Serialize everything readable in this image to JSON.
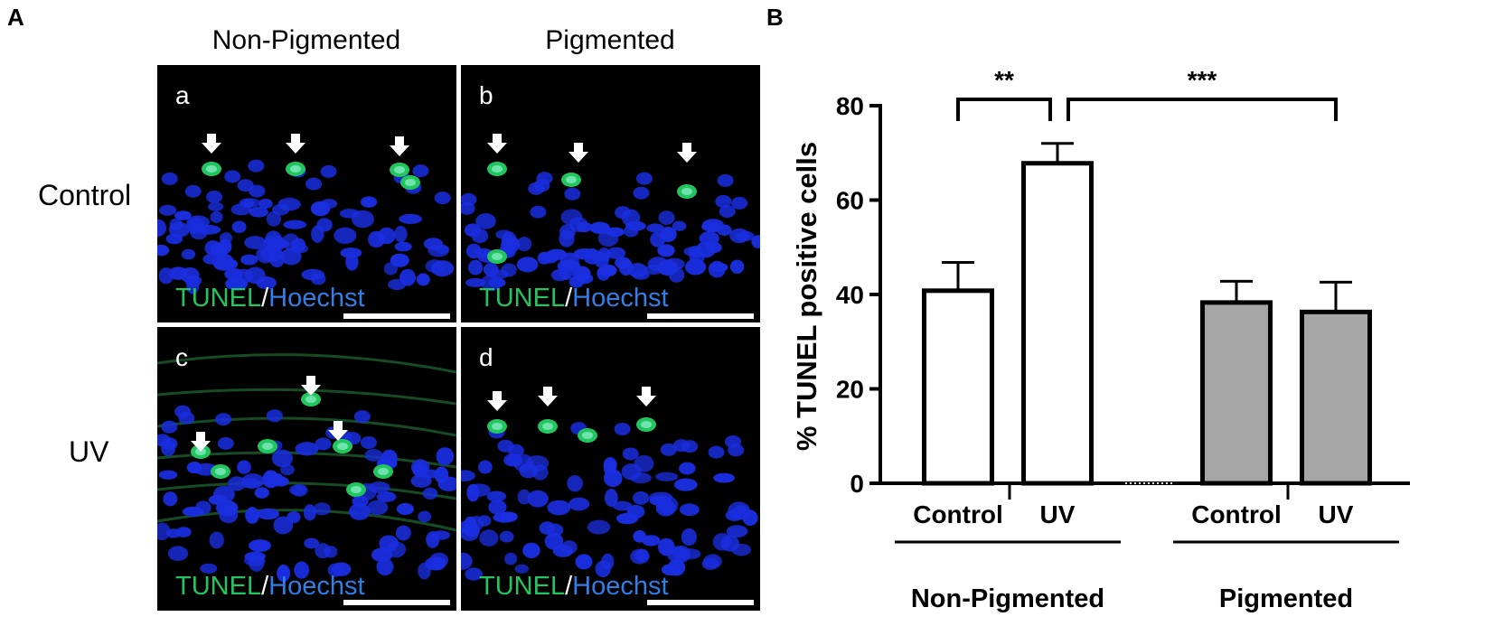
{
  "panel_a": {
    "letter": "A",
    "col_headers": [
      "Non-Pigmented",
      "Pigmented"
    ],
    "row_headers": [
      "Control",
      "UV"
    ],
    "panels": [
      {
        "letter": "a"
      },
      {
        "letter": "b"
      },
      {
        "letter": "c"
      },
      {
        "letter": "d"
      }
    ],
    "stain": {
      "tunel": "TUNEL",
      "slash": "/",
      "hoechst": "Hoechst"
    },
    "colors": {
      "tunel": "#22c55e",
      "hoechst": "#2f7fe6",
      "background": "#000000",
      "nucleus": "#1a2ee0"
    }
  },
  "panel_b": {
    "letter": "B"
  },
  "chart_data": {
    "type": "bar",
    "ylabel": "% TUNEL positive cells",
    "ylim": [
      0,
      80
    ],
    "yticks": [
      0,
      20,
      40,
      60,
      80
    ],
    "categories": [
      "Control",
      "UV",
      "Control",
      "UV"
    ],
    "groups": [
      {
        "name": "Non-Pigmented",
        "indices": [
          0,
          1
        ]
      },
      {
        "name": "Pigmented",
        "indices": [
          2,
          3
        ]
      }
    ],
    "values": [
      40.8,
      67.8,
      38.3,
      36.3
    ],
    "errors": [
      6.0,
      4.2,
      4.5,
      6.3
    ],
    "bar_colors": [
      "#ffffff",
      "#ffffff",
      "#a6a6a6",
      "#a6a6a6"
    ],
    "significance": [
      {
        "from": 0,
        "to": 1,
        "label": "**"
      },
      {
        "from": 1,
        "to": 3,
        "label": "***"
      }
    ]
  }
}
